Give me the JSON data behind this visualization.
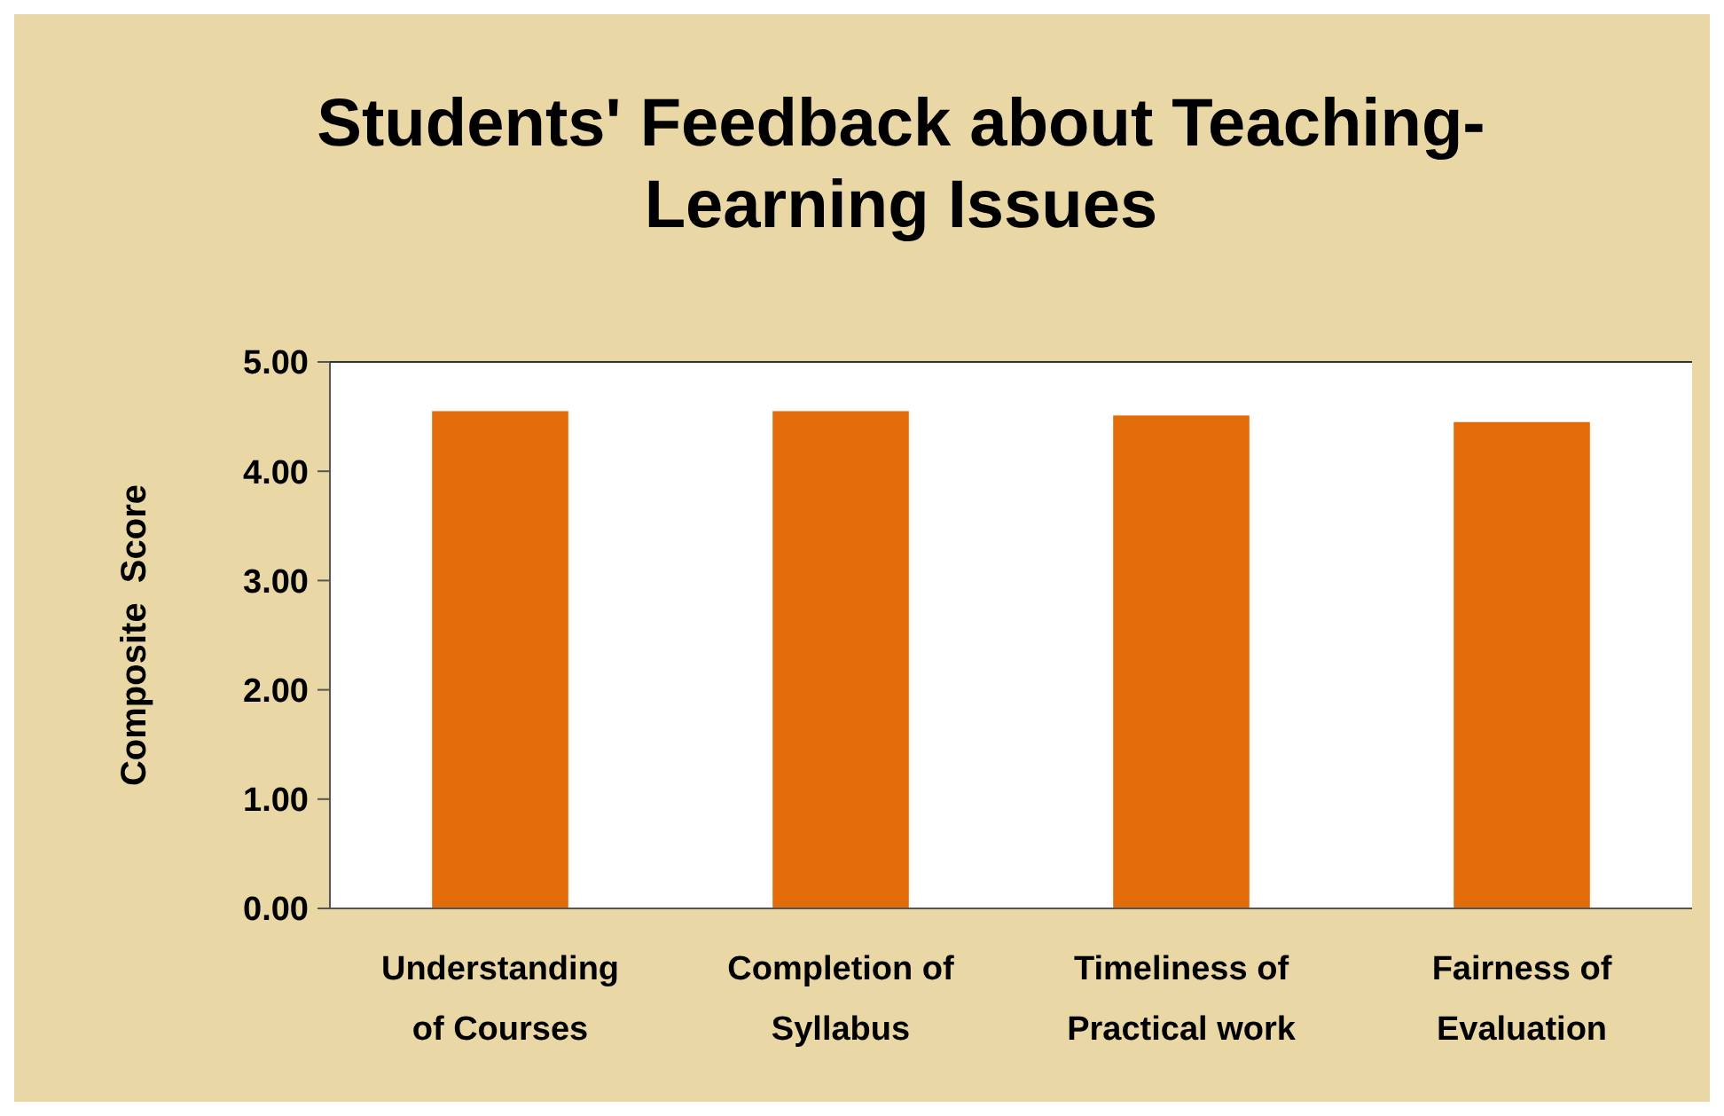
{
  "chart_data": {
    "type": "bar",
    "title": "Students' Feedback about Teaching-\nLearning Issues",
    "ylabel": "Composite  Score",
    "categories": [
      "Understanding\nof Courses",
      "Completion of\nSyllabus",
      "Timeliness of\nPractical work",
      "Fairness of\nEvaluation"
    ],
    "values": [
      4.55,
      4.55,
      4.51,
      4.45
    ],
    "color": "#e36c0a",
    "ylim": [
      0,
      5
    ],
    "yticks": [
      {
        "value": 0,
        "label": "0.00"
      },
      {
        "value": 1,
        "label": "1.00"
      },
      {
        "value": 2,
        "label": "2.00"
      },
      {
        "value": 3,
        "label": "3.00"
      },
      {
        "value": 4,
        "label": "4.00"
      },
      {
        "value": 5,
        "label": "5.00"
      }
    ],
    "grid": false
  }
}
